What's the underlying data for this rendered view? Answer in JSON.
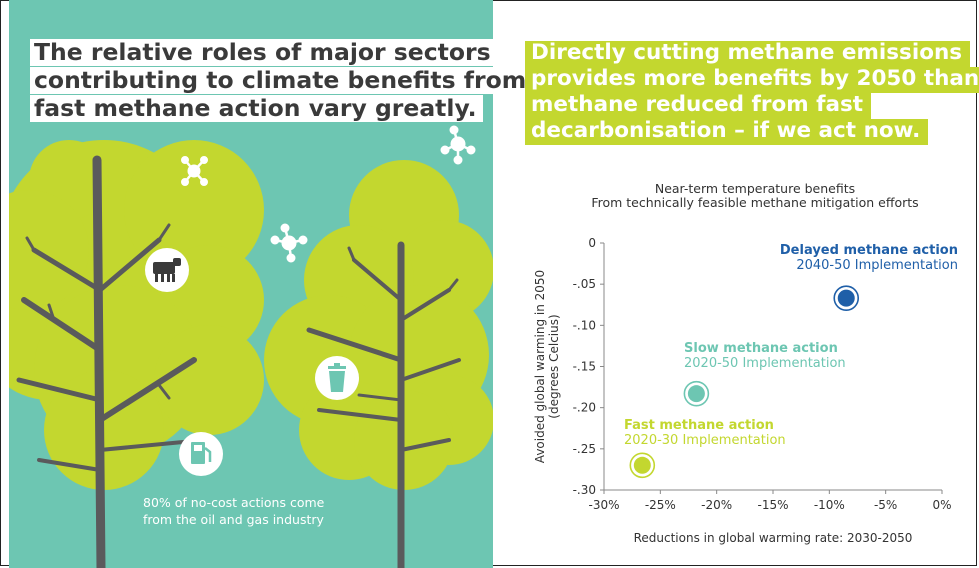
{
  "left": {
    "title_lines": [
      "The relative roles of major sectors",
      "contributing to climate benefits from",
      "fast methane action vary greatly."
    ],
    "caption_lines": [
      "80% of no-cost actions come",
      "from the oil and gas industry"
    ],
    "icons": [
      "cow-icon",
      "trash-bin-icon",
      "fuel-pump-icon",
      "methane-molecule-icon"
    ]
  },
  "right": {
    "title_lines": [
      "Directly cutting methane emissions",
      "provides more benefits by 2050 than",
      "methane reduced from fast",
      "decarbonisation – if we act now."
    ]
  },
  "colors": {
    "teal_background": "#6dc6b2",
    "lime": "#c3d72f",
    "tree_trunk": "#5a5a5c",
    "delayed": "#1f5fa8",
    "slow": "#6dc6b2",
    "fast": "#c3d72f"
  },
  "chart_data": {
    "type": "scatter",
    "title": "Near-term temperature benefits",
    "subtitle": "From technically feasible methane mitigation efforts",
    "xlabel": "Reductions in global warming rate: 2030-2050",
    "ylabel_lines": [
      "Avoided global warming in 2050",
      "(degrees Celcius)"
    ],
    "xlim": [
      -0.3,
      0.0
    ],
    "ylim": [
      -0.3,
      0.0
    ],
    "x_ticks": [
      -0.3,
      -0.25,
      -0.2,
      -0.15,
      -0.1,
      -0.05,
      0.0
    ],
    "x_tick_labels": [
      "-30%",
      "-25%",
      "-20%",
      "-15%",
      "-10%",
      "-5%",
      "0%"
    ],
    "y_ticks": [
      0.0,
      -0.05,
      -0.1,
      -0.15,
      -0.2,
      -0.25,
      -0.3
    ],
    "y_tick_labels": [
      "0",
      "-.05",
      "-.10",
      "-.15",
      "-.20",
      "-.25",
      "-.30"
    ],
    "points": [
      {
        "name": "Delayed methane action",
        "sub": "2040-50 Implementation",
        "x": -0.085,
        "y": -0.067,
        "color": "#1f5fa8"
      },
      {
        "name": "Slow methane action",
        "sub": "2020-50 Implementation",
        "x": -0.218,
        "y": -0.183,
        "color": "#6dc6b2"
      },
      {
        "name": "Fast methane action",
        "sub": "2020-30 Implementation",
        "x": -0.266,
        "y": -0.27,
        "color": "#c3d72f"
      }
    ]
  }
}
